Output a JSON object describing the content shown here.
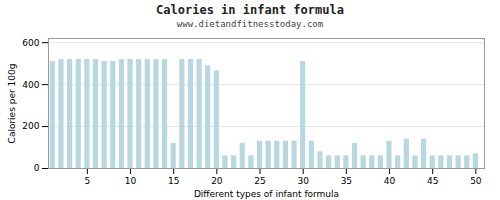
{
  "chart_data": {
    "type": "bar",
    "title": "Calories in infant formula",
    "subtitle": "www.dietandfitnesstoday.com",
    "xlabel": "Different types of infant formula",
    "ylabel": "Calories per 100g",
    "x": [
      1,
      2,
      3,
      4,
      5,
      6,
      7,
      8,
      9,
      10,
      11,
      12,
      13,
      14,
      15,
      16,
      17,
      18,
      19,
      20,
      21,
      22,
      23,
      24,
      25,
      26,
      27,
      28,
      29,
      30,
      31,
      32,
      33,
      34,
      35,
      36,
      37,
      38,
      39,
      40,
      41,
      42,
      43,
      44,
      45,
      46,
      47,
      48,
      49,
      50
    ],
    "values": [
      510,
      520,
      520,
      520,
      520,
      520,
      510,
      510,
      520,
      520,
      520,
      520,
      520,
      520,
      120,
      520,
      520,
      520,
      490,
      465,
      60,
      60,
      120,
      60,
      130,
      130,
      130,
      130,
      130,
      510,
      130,
      80,
      60,
      60,
      60,
      120,
      60,
      60,
      60,
      130,
      60,
      140,
      60,
      140,
      60,
      60,
      60,
      60,
      60,
      70
    ],
    "color": "#b8d8e0",
    "xlim": [
      0.5,
      51
    ],
    "xticks": [
      5,
      10,
      15,
      20,
      25,
      30,
      35,
      40,
      45,
      50
    ],
    "ylim": [
      0,
      620
    ],
    "yticks": [
      0,
      200,
      400,
      600
    ],
    "grid": true
  }
}
